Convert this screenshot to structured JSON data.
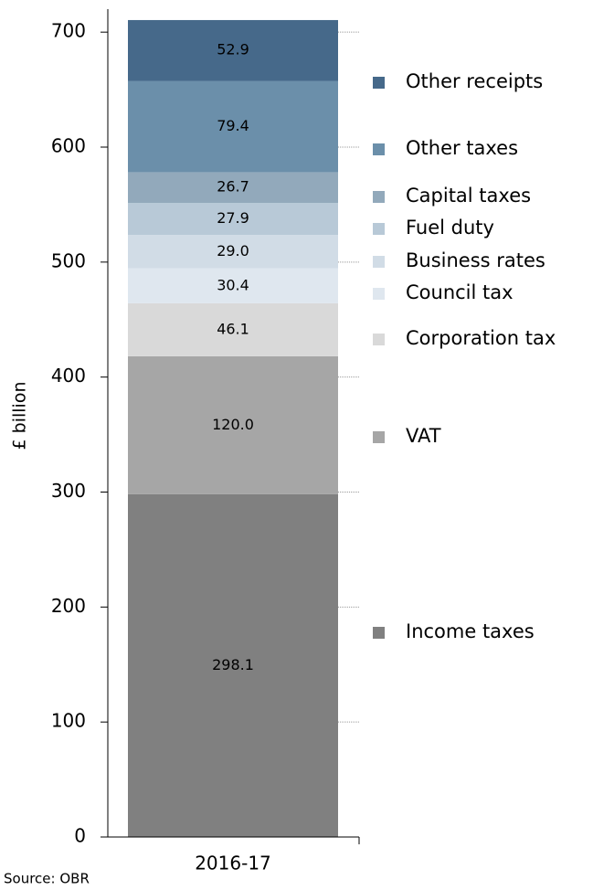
{
  "chart_data": {
    "type": "stacked-bar",
    "ylabel": "£ billion",
    "source": "Source: OBR",
    "categories": [
      "2016-17"
    ],
    "ylim": [
      0,
      720
    ],
    "yticks": [
      0,
      100,
      200,
      300,
      400,
      500,
      600,
      700
    ],
    "series": [
      {
        "name": "Income taxes",
        "color": "#808080",
        "values": [
          298.1
        ],
        "value_labels": [
          "298.1"
        ]
      },
      {
        "name": "VAT",
        "color": "#a6a6a6",
        "values": [
          120.0
        ],
        "value_labels": [
          "120.0"
        ]
      },
      {
        "name": "Corporation tax",
        "color": "#d9d9d9",
        "values": [
          46.1
        ],
        "value_labels": [
          "46.1"
        ]
      },
      {
        "name": "Council tax",
        "color": "#dfe7ef",
        "values": [
          30.4
        ],
        "value_labels": [
          "30.4"
        ]
      },
      {
        "name": "Business rates",
        "color": "#d1dce6",
        "values": [
          29.0
        ],
        "value_labels": [
          "29.0"
        ]
      },
      {
        "name": "Fuel duty",
        "color": "#b8c9d7",
        "values": [
          27.9
        ],
        "value_labels": [
          "27.9"
        ]
      },
      {
        "name": "Capital taxes",
        "color": "#92a9bb",
        "values": [
          26.7
        ],
        "value_labels": [
          "26.7"
        ]
      },
      {
        "name": "Other taxes",
        "color": "#6b8faa",
        "values": [
          79.4
        ],
        "value_labels": [
          "79.4"
        ]
      },
      {
        "name": "Other receipts",
        "color": "#46698a",
        "values": [
          52.9
        ],
        "value_labels": [
          "52.9"
        ]
      }
    ]
  }
}
